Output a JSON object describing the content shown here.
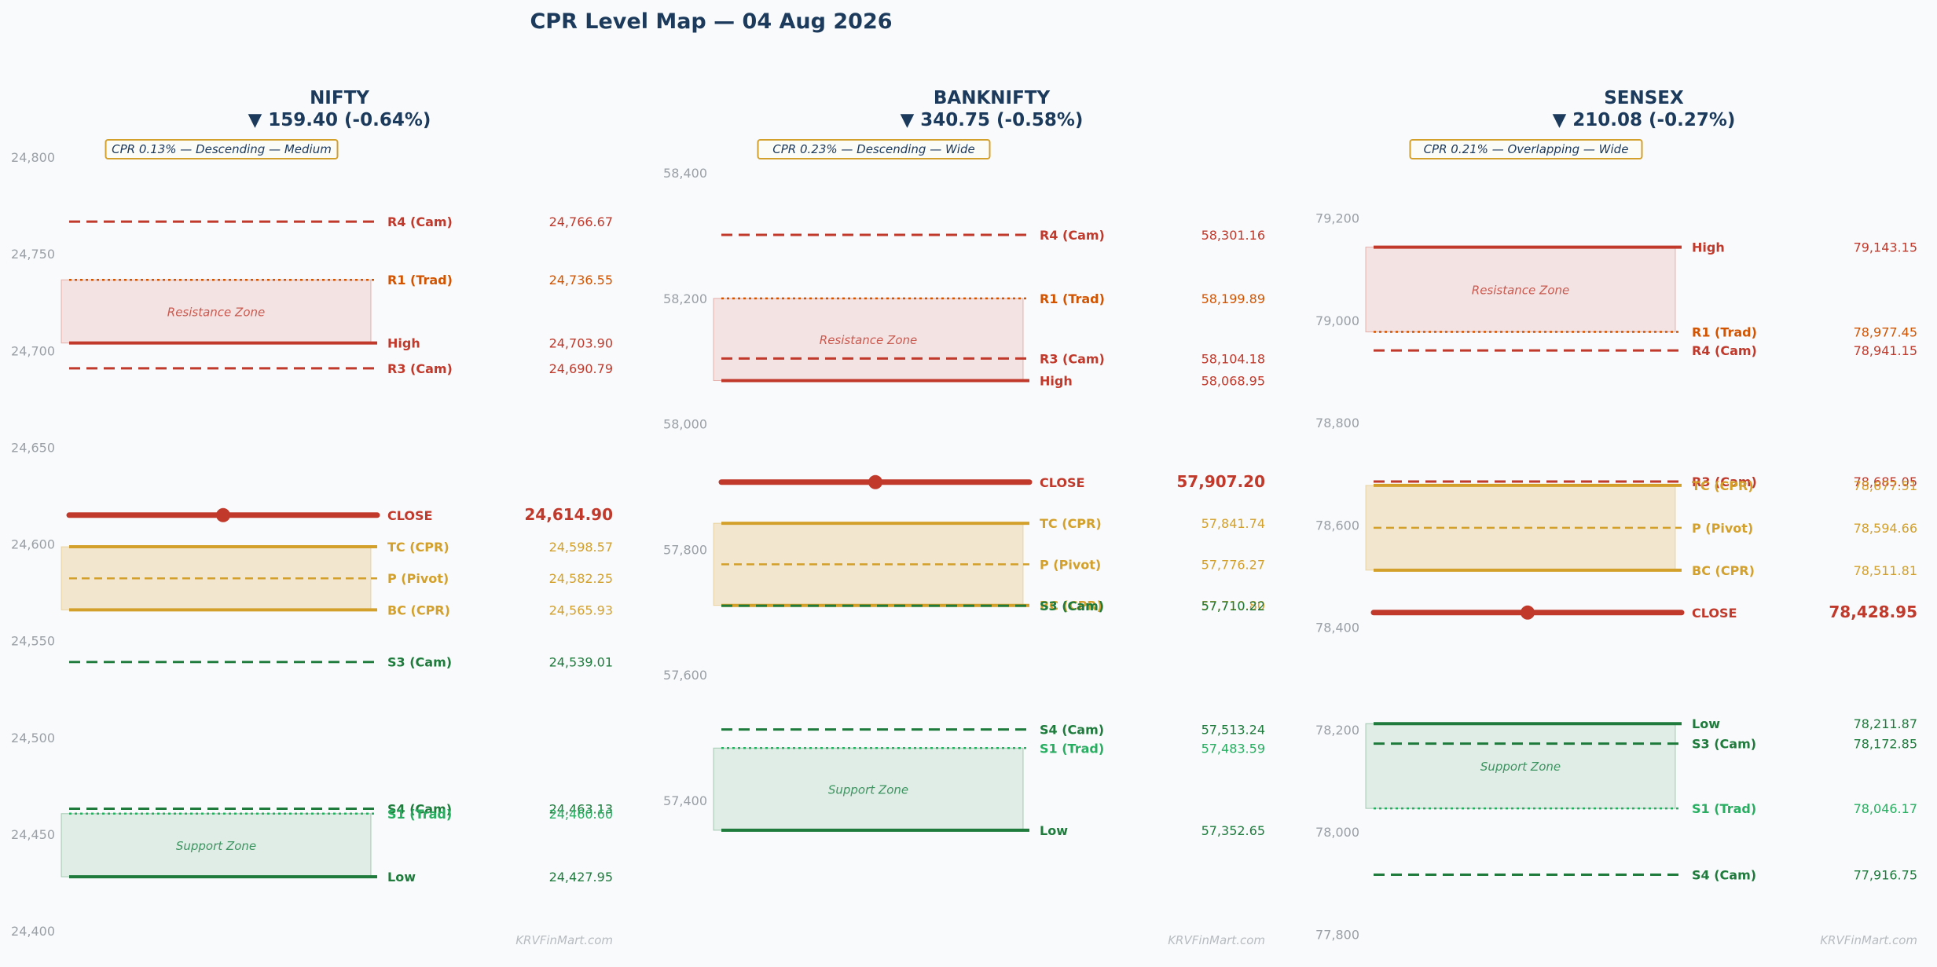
{
  "page_title": "CPR Level Map — 04 Aug 2026",
  "watermark": "KRVFinMart.com",
  "zone_labels": {
    "resistance": "Resistance Zone",
    "support": "Support Zone"
  },
  "colors": {
    "title": "#1c3a5c",
    "resistance": "#c0392b",
    "r_trad": "#d35400",
    "support": "#1e7b3c",
    "s_trad": "#27ae60",
    "cpr": "#d4a02c",
    "close": "#c0392b",
    "resistance_zone_fill": "#f4e3e3",
    "support_zone_fill": "#e0ede6",
    "cpr_zone_fill": "#f2e6cf",
    "tick": "#9aa0a6",
    "badge_border": "#d4a02c"
  },
  "chart_data": [
    {
      "type": "line",
      "title": "NIFTY",
      "change_text": "▼ 159.40 (-0.64%)",
      "badge": "CPR 0.13% — Descending — Medium",
      "ylim": [
        24400,
        24800
      ],
      "yticks": [
        "24,400",
        "24,450",
        "24,500",
        "24,550",
        "24,600",
        "24,650",
        "24,700",
        "24,750",
        "24,800"
      ],
      "resistance_zone": [
        24703.9,
        24736.55
      ],
      "cpr_zone": [
        24565.93,
        24598.57
      ],
      "support_zone": [
        24427.95,
        24460.6
      ],
      "levels": [
        {
          "label": "R4 (Cam)",
          "value": 24766.67,
          "value_text": "24,766.67",
          "kind": "cam_r"
        },
        {
          "label": "R1 (Trad)",
          "value": 24736.55,
          "value_text": "24,736.55",
          "kind": "trad_r"
        },
        {
          "label": "High",
          "value": 24703.9,
          "value_text": "24,703.90",
          "kind": "high"
        },
        {
          "label": "R3 (Cam)",
          "value": 24690.79,
          "value_text": "24,690.79",
          "kind": "cam_r"
        },
        {
          "label": "CLOSE",
          "value": 24614.9,
          "value_text": "24,614.90",
          "kind": "close"
        },
        {
          "label": "TC (CPR)",
          "value": 24598.57,
          "value_text": "24,598.57",
          "kind": "cpr_edge"
        },
        {
          "label": "P (Pivot)",
          "value": 24582.25,
          "value_text": "24,582.25",
          "kind": "pivot"
        },
        {
          "label": "BC (CPR)",
          "value": 24565.93,
          "value_text": "24,565.93",
          "kind": "cpr_edge"
        },
        {
          "label": "S3 (Cam)",
          "value": 24539.01,
          "value_text": "24,539.01",
          "kind": "cam_s"
        },
        {
          "label": "S4 (Cam)",
          "value": 24463.13,
          "value_text": "24,463.13",
          "kind": "cam_s"
        },
        {
          "label": "S1 (Trad)",
          "value": 24460.6,
          "value_text": "24,460.60",
          "kind": "trad_s"
        },
        {
          "label": "Low",
          "value": 24427.95,
          "value_text": "24,427.95",
          "kind": "low"
        }
      ]
    },
    {
      "type": "line",
      "title": "BANKNIFTY",
      "change_text": "▼ 340.75 (-0.58%)",
      "badge": "CPR 0.23% — Descending — Wide",
      "ylim": [
        57330,
        58430
      ],
      "yticks": [
        "57,400",
        "57,600",
        "57,800",
        "58,000",
        "58,200",
        "58,400"
      ],
      "resistance_zone": [
        58068.95,
        58199.89
      ],
      "cpr_zone": [
        57710.8,
        57841.74
      ],
      "support_zone": [
        57352.65,
        57483.59
      ],
      "levels": [
        {
          "label": "R4 (Cam)",
          "value": 58301.16,
          "value_text": "58,301.16",
          "kind": "cam_r"
        },
        {
          "label": "R1 (Trad)",
          "value": 58199.89,
          "value_text": "58,199.89",
          "kind": "trad_r"
        },
        {
          "label": "R3 (Cam)",
          "value": 58104.18,
          "value_text": "58,104.18",
          "kind": "cam_r"
        },
        {
          "label": "High",
          "value": 58068.95,
          "value_text": "58,068.95",
          "kind": "high"
        },
        {
          "label": "CLOSE",
          "value": 57907.2,
          "value_text": "57,907.20",
          "kind": "close"
        },
        {
          "label": "TC (CPR)",
          "value": 57841.74,
          "value_text": "57,841.74",
          "kind": "cpr_edge"
        },
        {
          "label": "P (Pivot)",
          "value": 57776.27,
          "value_text": "57,776.27",
          "kind": "pivot"
        },
        {
          "label": "BC (CPR)",
          "value": 57710.8,
          "value_text": "57,710.80",
          "kind": "cpr_edge"
        },
        {
          "label": "S3 (Cam)",
          "value": 57710.22,
          "value_text": "57,710.22",
          "kind": "cam_s"
        },
        {
          "label": "S4 (Cam)",
          "value": 57513.24,
          "value_text": "57,513.24",
          "kind": "cam_s"
        },
        {
          "label": "S1 (Trad)",
          "value": 57483.59,
          "value_text": "57,483.59",
          "kind": "trad_s"
        },
        {
          "label": "Low",
          "value": 57352.65,
          "value_text": "57,352.65",
          "kind": "low"
        }
      ]
    },
    {
      "type": "line",
      "title": "SENSEX",
      "change_text": "▼ 210.08 (-0.27%)",
      "badge": "CPR 0.21% — Overlapping — Wide",
      "ylim": [
        77790,
        79250
      ],
      "yticks": [
        "77,800",
        "78,000",
        "78,200",
        "78,400",
        "78,600",
        "78,800",
        "79,000",
        "79,200"
      ],
      "resistance_zone": [
        78977.45,
        79143.15
      ],
      "cpr_zone": [
        78511.81,
        78677.51
      ],
      "support_zone": [
        78046.17,
        78211.87
      ],
      "levels": [
        {
          "label": "High",
          "value": 79143.15,
          "value_text": "79,143.15",
          "kind": "high"
        },
        {
          "label": "R1 (Trad)",
          "value": 78977.45,
          "value_text": "78,977.45",
          "kind": "trad_r"
        },
        {
          "label": "R4 (Cam)",
          "value": 78941.15,
          "value_text": "78,941.15",
          "kind": "cam_r"
        },
        {
          "label": "R3 (Cam)",
          "value": 78685.05,
          "value_text": "78,685.05",
          "kind": "cam_r"
        },
        {
          "label": "TC (CPR)",
          "value": 78677.51,
          "value_text": "78,677.51",
          "kind": "cpr_edge"
        },
        {
          "label": "P (Pivot)",
          "value": 78594.66,
          "value_text": "78,594.66",
          "kind": "pivot"
        },
        {
          "label": "BC (CPR)",
          "value": 78511.81,
          "value_text": "78,511.81",
          "kind": "cpr_edge"
        },
        {
          "label": "CLOSE",
          "value": 78428.95,
          "value_text": "78,428.95",
          "kind": "close"
        },
        {
          "label": "Low",
          "value": 78211.87,
          "value_text": "78,211.87",
          "kind": "low"
        },
        {
          "label": "S3 (Cam)",
          "value": 78172.85,
          "value_text": "78,172.85",
          "kind": "cam_s"
        },
        {
          "label": "S1 (Trad)",
          "value": 78046.17,
          "value_text": "78,046.17",
          "kind": "trad_s"
        },
        {
          "label": "S4 (Cam)",
          "value": 77916.75,
          "value_text": "77,916.75",
          "kind": "cam_s"
        }
      ]
    }
  ]
}
